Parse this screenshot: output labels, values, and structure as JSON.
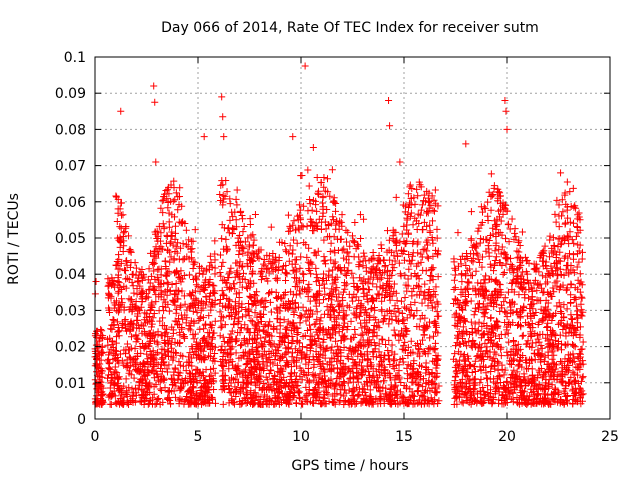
{
  "chart_data": {
    "type": "scatter",
    "title": "Day 066 of 2014, Rate Of TEC Index for receiver sutm",
    "xlabel": "GPS time / hours",
    "ylabel": "ROTI / TECUs",
    "xlim": [
      0,
      25
    ],
    "ylim": [
      0,
      0.1
    ],
    "xticks": [
      "0",
      "5",
      "10",
      "15",
      "20",
      "25"
    ],
    "yticks": [
      "0",
      "0.01",
      "0.02",
      "0.03",
      "0.04",
      "0.05",
      "0.06",
      "0.07",
      "0.08",
      "0.09",
      "0.1"
    ],
    "xtick_values": [
      0,
      5,
      10,
      15,
      20,
      25
    ],
    "ytick_values": [
      0,
      0.01,
      0.02,
      0.03,
      0.04,
      0.05,
      0.06,
      0.07,
      0.08,
      0.09,
      0.1
    ],
    "grid": true,
    "marker": "+",
    "color": "#ff0000",
    "data_gap_hours": [
      16.7,
      17.4
    ],
    "notable_points": [
      {
        "x": 0.05,
        "y": 0.038
      },
      {
        "x": 1.25,
        "y": 0.085
      },
      {
        "x": 2.85,
        "y": 0.092
      },
      {
        "x": 2.9,
        "y": 0.0875
      },
      {
        "x": 2.95,
        "y": 0.071
      },
      {
        "x": 5.3,
        "y": 0.078
      },
      {
        "x": 6.15,
        "y": 0.089
      },
      {
        "x": 6.2,
        "y": 0.0835
      },
      {
        "x": 6.25,
        "y": 0.078
      },
      {
        "x": 9.6,
        "y": 0.078
      },
      {
        "x": 10.2,
        "y": 0.0975
      },
      {
        "x": 10.6,
        "y": 0.075
      },
      {
        "x": 14.25,
        "y": 0.088
      },
      {
        "x": 14.3,
        "y": 0.081
      },
      {
        "x": 14.8,
        "y": 0.071
      },
      {
        "x": 18.0,
        "y": 0.076
      },
      {
        "x": 19.9,
        "y": 0.088
      },
      {
        "x": 19.95,
        "y": 0.085
      },
      {
        "x": 20.0,
        "y": 0.08
      },
      {
        "x": 22.6,
        "y": 0.068
      }
    ]
  }
}
